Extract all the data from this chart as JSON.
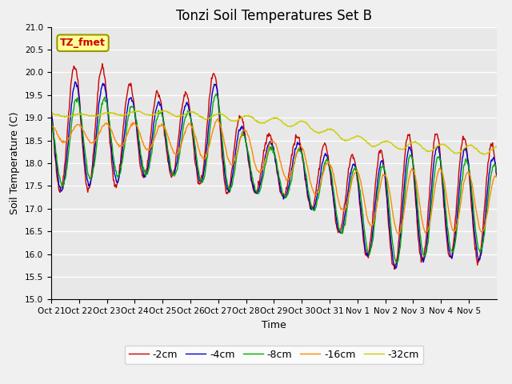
{
  "title": "Tonzi Soil Temperatures Set B",
  "xlabel": "Time",
  "ylabel": "Soil Temperature (C)",
  "ylim": [
    15.0,
    21.0
  ],
  "yticks": [
    15.0,
    15.5,
    16.0,
    16.5,
    17.0,
    17.5,
    18.0,
    18.5,
    19.0,
    19.5,
    20.0,
    20.5,
    21.0
  ],
  "xtick_labels": [
    "Oct 21",
    "Oct 22",
    "Oct 23",
    "Oct 24",
    "Oct 25",
    "Oct 26",
    "Oct 27",
    "Oct 28",
    "Oct 29",
    "Oct 30",
    "Oct 31",
    "Nov 1",
    "Nov 2",
    "Nov 3",
    "Nov 4",
    "Nov 5"
  ],
  "legend_labels": [
    "-2cm",
    "-4cm",
    "-8cm",
    "-16cm",
    "-32cm"
  ],
  "line_colors": [
    "#cc0000",
    "#0000cc",
    "#00aa00",
    "#ff8800",
    "#cccc00"
  ],
  "annotation_text": "TZ_fmet",
  "annotation_color": "#cc0000",
  "annotation_bg": "#ffff99",
  "bg_color": "#e8e8e8",
  "title_fontsize": 12,
  "label_fontsize": 9
}
